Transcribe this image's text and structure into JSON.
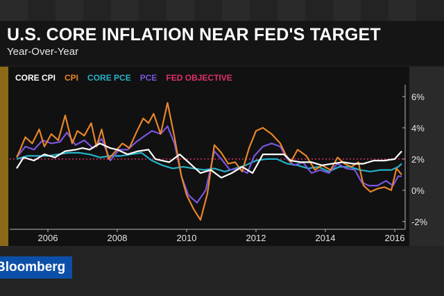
{
  "header": {
    "title": "U.S. CORE INFLATION NEAR FED'S TARGET",
    "subtitle": "Year-Over-Year"
  },
  "brand": {
    "logo_text": "Bloomberg"
  },
  "colors": {
    "core_cpi": "#ffffff",
    "cpi": "#e8862a",
    "core_pce": "#24b3c8",
    "pce": "#7a56e0",
    "fed_objective": "#e0306a"
  },
  "chart_data": {
    "type": "line",
    "title": "U.S. CORE INFLATION NEAR FED'S TARGET",
    "subtitle": "Year-Over-Year",
    "xlabel": "",
    "ylabel": "",
    "xlim": [
      2004.9,
      2016.3
    ],
    "ylim": [
      -2.5,
      6.4
    ],
    "x_ticks": [
      2006,
      2008,
      2010,
      2012,
      2014,
      2016
    ],
    "x_tick_labels": [
      "2006",
      "2008",
      "2010",
      "2012",
      "2014",
      "2016"
    ],
    "y_ticks": [
      6,
      4,
      2,
      0,
      -2
    ],
    "y_tick_labels": [
      "6%",
      "4%",
      "2%",
      "0%",
      "-2%"
    ],
    "y_axis_side": "right",
    "grid": false,
    "legend_placement": "top-left",
    "reference_line": {
      "name": "FED OBJECTIVE",
      "value": 2.0
    },
    "series": [
      {
        "name": "CORE CPI",
        "points": [
          [
            2005.1,
            1.4
          ],
          [
            2005.3,
            2.1
          ],
          [
            2005.6,
            1.9
          ],
          [
            2005.9,
            2.3
          ],
          [
            2006.2,
            2.1
          ],
          [
            2006.5,
            2.5
          ],
          [
            2006.8,
            2.6
          ],
          [
            2007.0,
            2.7
          ],
          [
            2007.2,
            2.6
          ],
          [
            2007.5,
            3.0
          ],
          [
            2007.8,
            2.7
          ],
          [
            2008.0,
            2.6
          ],
          [
            2008.3,
            2.3
          ],
          [
            2008.6,
            2.5
          ],
          [
            2008.9,
            2.6
          ],
          [
            2009.1,
            2.0
          ],
          [
            2009.5,
            1.8
          ],
          [
            2009.8,
            2.3
          ],
          [
            2010.1,
            1.7
          ],
          [
            2010.4,
            1.1
          ],
          [
            2010.7,
            1.3
          ],
          [
            2011.0,
            0.8
          ],
          [
            2011.3,
            1.1
          ],
          [
            2011.6,
            1.5
          ],
          [
            2011.9,
            1.1
          ],
          [
            2012.2,
            2.3
          ],
          [
            2012.5,
            2.3
          ],
          [
            2012.8,
            2.3
          ],
          [
            2013.0,
            1.9
          ],
          [
            2013.3,
            1.8
          ],
          [
            2013.6,
            1.8
          ],
          [
            2013.9,
            1.6
          ],
          [
            2014.2,
            1.7
          ],
          [
            2014.5,
            1.8
          ],
          [
            2014.8,
            1.7
          ],
          [
            2015.1,
            1.7
          ],
          [
            2015.4,
            1.9
          ],
          [
            2015.7,
            1.9
          ],
          [
            2016.0,
            2.0
          ],
          [
            2016.2,
            2.5
          ]
        ]
      },
      {
        "name": "CPI",
        "points": [
          [
            2005.1,
            2.1
          ],
          [
            2005.2,
            2.6
          ],
          [
            2005.35,
            3.4
          ],
          [
            2005.55,
            3.0
          ],
          [
            2005.75,
            3.9
          ],
          [
            2005.9,
            2.8
          ],
          [
            2006.1,
            3.6
          ],
          [
            2006.3,
            3.2
          ],
          [
            2006.5,
            4.8
          ],
          [
            2006.7,
            3.0
          ],
          [
            2006.85,
            3.8
          ],
          [
            2007.05,
            3.5
          ],
          [
            2007.25,
            4.3
          ],
          [
            2007.4,
            2.8
          ],
          [
            2007.55,
            3.9
          ],
          [
            2007.75,
            2.0
          ],
          [
            2007.95,
            2.5
          ],
          [
            2008.15,
            3.0
          ],
          [
            2008.35,
            2.7
          ],
          [
            2008.55,
            3.7
          ],
          [
            2008.75,
            4.6
          ],
          [
            2008.9,
            4.3
          ],
          [
            2009.05,
            4.9
          ],
          [
            2009.25,
            3.6
          ],
          [
            2009.45,
            5.6
          ],
          [
            2009.65,
            3.4
          ],
          [
            2009.85,
            0.9
          ],
          [
            2010.0,
            -0.3
          ],
          [
            2010.2,
            -1.2
          ],
          [
            2010.4,
            -1.9
          ],
          [
            2010.6,
            -0.2
          ],
          [
            2010.8,
            2.9
          ],
          [
            2011.0,
            2.4
          ],
          [
            2011.2,
            1.7
          ],
          [
            2011.4,
            1.8
          ],
          [
            2011.6,
            1.2
          ],
          [
            2011.8,
            2.7
          ],
          [
            2012.0,
            3.8
          ],
          [
            2012.2,
            4.0
          ],
          [
            2012.45,
            3.6
          ],
          [
            2012.7,
            3.0
          ],
          [
            2012.85,
            2.3
          ],
          [
            2013.0,
            1.8
          ],
          [
            2013.2,
            2.6
          ],
          [
            2013.45,
            2.2
          ],
          [
            2013.7,
            1.3
          ],
          [
            2013.9,
            1.6
          ],
          [
            2014.15,
            1.3
          ],
          [
            2014.35,
            2.1
          ],
          [
            2014.55,
            1.7
          ],
          [
            2014.75,
            1.5
          ],
          [
            2014.95,
            1.8
          ],
          [
            2015.1,
            0.3
          ],
          [
            2015.3,
            -0.1
          ],
          [
            2015.5,
            0.1
          ],
          [
            2015.7,
            0.2
          ],
          [
            2015.9,
            0.0
          ],
          [
            2016.05,
            1.4
          ],
          [
            2016.2,
            1.0
          ]
        ]
      },
      {
        "name": "CORE PCE",
        "points": [
          [
            2005.1,
            2.0
          ],
          [
            2005.4,
            2.2
          ],
          [
            2005.7,
            2.2
          ],
          [
            2006.0,
            2.2
          ],
          [
            2006.3,
            2.3
          ],
          [
            2006.6,
            2.4
          ],
          [
            2006.9,
            2.4
          ],
          [
            2007.2,
            2.3
          ],
          [
            2007.5,
            2.1
          ],
          [
            2007.8,
            2.2
          ],
          [
            2008.1,
            2.2
          ],
          [
            2008.4,
            2.3
          ],
          [
            2008.7,
            2.4
          ],
          [
            2009.0,
            1.9
          ],
          [
            2009.3,
            1.6
          ],
          [
            2009.6,
            1.4
          ],
          [
            2009.9,
            1.5
          ],
          [
            2010.2,
            1.4
          ],
          [
            2010.5,
            1.3
          ],
          [
            2010.8,
            1.4
          ],
          [
            2011.1,
            1.2
          ],
          [
            2011.4,
            1.4
          ],
          [
            2011.7,
            1.6
          ],
          [
            2012.0,
            1.9
          ],
          [
            2012.3,
            2.0
          ],
          [
            2012.6,
            2.0
          ],
          [
            2012.9,
            1.7
          ],
          [
            2013.2,
            1.6
          ],
          [
            2013.5,
            1.4
          ],
          [
            2013.8,
            1.5
          ],
          [
            2014.1,
            1.2
          ],
          [
            2014.4,
            1.5
          ],
          [
            2014.7,
            1.5
          ],
          [
            2015.0,
            1.3
          ],
          [
            2015.3,
            1.2
          ],
          [
            2015.6,
            1.3
          ],
          [
            2015.9,
            1.3
          ],
          [
            2016.1,
            1.5
          ],
          [
            2016.2,
            1.7
          ]
        ]
      },
      {
        "name": "PCE",
        "points": [
          [
            2005.1,
            2.1
          ],
          [
            2005.35,
            2.8
          ],
          [
            2005.6,
            2.6
          ],
          [
            2005.85,
            3.2
          ],
          [
            2006.1,
            3.0
          ],
          [
            2006.35,
            3.1
          ],
          [
            2006.55,
            3.7
          ],
          [
            2006.8,
            2.9
          ],
          [
            2007.05,
            3.2
          ],
          [
            2007.3,
            2.7
          ],
          [
            2007.55,
            3.3
          ],
          [
            2007.8,
            1.9
          ],
          [
            2008.05,
            2.6
          ],
          [
            2008.3,
            2.6
          ],
          [
            2008.55,
            3.1
          ],
          [
            2008.8,
            3.5
          ],
          [
            2009.0,
            3.8
          ],
          [
            2009.25,
            3.6
          ],
          [
            2009.45,
            4.1
          ],
          [
            2009.65,
            3.0
          ],
          [
            2009.85,
            0.9
          ],
          [
            2010.05,
            -0.3
          ],
          [
            2010.3,
            -0.8
          ],
          [
            2010.55,
            0.0
          ],
          [
            2010.8,
            2.5
          ],
          [
            2011.0,
            2.0
          ],
          [
            2011.25,
            1.3
          ],
          [
            2011.5,
            1.4
          ],
          [
            2011.75,
            1.1
          ],
          [
            2011.95,
            2.2
          ],
          [
            2012.2,
            2.8
          ],
          [
            2012.45,
            3.0
          ],
          [
            2012.7,
            2.8
          ],
          [
            2012.9,
            2.0
          ],
          [
            2013.1,
            1.6
          ],
          [
            2013.35,
            1.8
          ],
          [
            2013.6,
            1.1
          ],
          [
            2013.85,
            1.3
          ],
          [
            2014.1,
            1.1
          ],
          [
            2014.35,
            1.7
          ],
          [
            2014.6,
            1.4
          ],
          [
            2014.85,
            1.3
          ],
          [
            2015.05,
            0.5
          ],
          [
            2015.25,
            0.3
          ],
          [
            2015.5,
            0.3
          ],
          [
            2015.75,
            0.6
          ],
          [
            2015.95,
            0.3
          ],
          [
            2016.1,
            0.9
          ],
          [
            2016.2,
            0.9
          ]
        ]
      }
    ]
  }
}
